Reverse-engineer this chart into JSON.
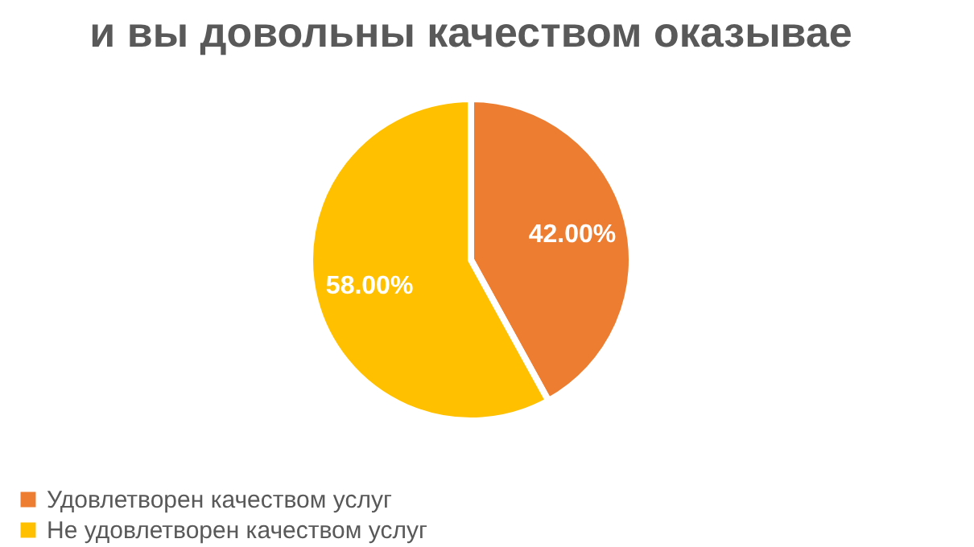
{
  "chart_data": {
    "type": "pie",
    "title": "и вы довольны качеством оказывае",
    "categories": [
      "Удовлетворен качеством услуг",
      "Не удовлетворен качеством услуг"
    ],
    "values": [
      42,
      58
    ],
    "colors": [
      "#ed7d31",
      "#ffc000"
    ],
    "value_labels": [
      "42.00%",
      "58.00%"
    ],
    "legend": "bottom"
  }
}
